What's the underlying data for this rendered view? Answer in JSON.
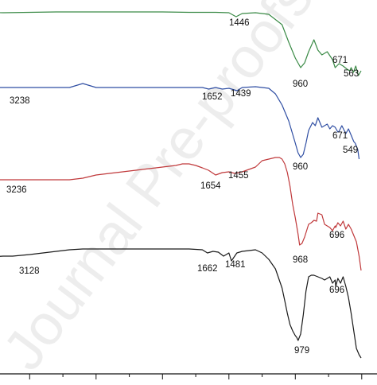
{
  "chart_data": {
    "type": "line",
    "xlabel": "",
    "ylabel": "",
    "xlim": [
      4000,
      400
    ],
    "x_ticks": [
      4000,
      3500,
      3000,
      2500,
      2000,
      1500,
      1000,
      500
    ],
    "x_tick_labels": [
      "",
      "",
      "",
      "",
      "",
      "",
      "",
      ""
    ],
    "grid": false,
    "legend": "none",
    "series": [
      {
        "color": "#3a8a46",
        "offset": 15,
        "x": [
          4000,
          3800,
          3600,
          3400,
          3200,
          3000,
          2800,
          2600,
          2400,
          2200,
          2000,
          1800,
          1700,
          1600,
          1500,
          1446,
          1400,
          1300,
          1200,
          1100,
          1050,
          1000,
          960,
          930,
          900,
          860,
          830,
          800,
          760,
          720,
          700,
          671,
          640,
          610,
          590,
          580,
          563,
          545,
          525,
          505
        ],
        "y": [
          0,
          0,
          0,
          0.5,
          1,
          0.5,
          0,
          0,
          0,
          0,
          0,
          0.5,
          0.5,
          0.5,
          1,
          6,
          2,
          1,
          3,
          16,
          38,
          58,
          70,
          64,
          50,
          35,
          48,
          54,
          50,
          60,
          70,
          65,
          68,
          72,
          74,
          70,
          76,
          68,
          80,
          74
        ]
      },
      {
        "color": "#2f4ea3",
        "offset": 110,
        "x": [
          4000,
          3800,
          3600,
          3400,
          3238,
          3200,
          3100,
          3000,
          2900,
          2800,
          2700,
          2600,
          2500,
          2400,
          2300,
          2200,
          2100,
          2000,
          1900,
          1800,
          1700,
          1652,
          1600,
          1550,
          1500,
          1439,
          1400,
          1300,
          1200,
          1150,
          1100,
          1050,
          1000,
          980,
          960,
          940,
          920,
          900,
          870,
          850,
          830,
          800,
          760,
          740,
          720,
          700,
          680,
          671,
          650,
          620,
          600,
          580,
          560,
          549,
          530,
          520
        ],
        "y": [
          0,
          0,
          0,
          0,
          0,
          0,
          0,
          0,
          0,
          0,
          0,
          -5,
          0,
          0,
          0,
          0,
          0,
          0,
          0,
          0,
          0,
          2,
          0,
          2,
          1,
          4,
          0,
          -1,
          1,
          8,
          22,
          42,
          70,
          82,
          88,
          84,
          70,
          54,
          44,
          48,
          38,
          50,
          46,
          52,
          48,
          50,
          56,
          55,
          48,
          58,
          52,
          60,
          68,
          70,
          78,
          90
        ]
      },
      {
        "color": "#c0393b",
        "offset": 212,
        "x": [
          4000,
          3800,
          3600,
          3400,
          3236,
          3200,
          3100,
          3000,
          2900,
          2800,
          2700,
          2600,
          2500,
          2400,
          2300,
          2200,
          2100,
          2000,
          1900,
          1850,
          1800,
          1750,
          1700,
          1654,
          1600,
          1550,
          1500,
          1455,
          1400,
          1350,
          1300,
          1250,
          1200,
          1150,
          1120,
          1100,
          1080,
          1060,
          1040,
          1020,
          1000,
          980,
          968,
          950,
          930,
          900,
          880,
          860,
          840,
          830,
          800,
          780,
          760,
          740,
          720,
          700,
          696,
          680,
          660,
          640,
          620,
          600,
          580,
          560,
          540,
          520,
          505
        ],
        "y": [
          5,
          8,
          10,
          12,
          14,
          14,
          14,
          14,
          14,
          14,
          14,
          12,
          8,
          6,
          4,
          2,
          0,
          -2,
          -4,
          -6,
          -6,
          -4,
          -1,
          2,
          8,
          5,
          4,
          6,
          4,
          1,
          -2,
          -10,
          -12,
          -14,
          -14,
          -12,
          -6,
          5,
          22,
          45,
          62,
          82,
          96,
          94,
          86,
          70,
          68,
          65,
          66,
          56,
          58,
          70,
          72,
          74,
          78,
          72,
          74,
          68,
          72,
          66,
          76,
          70,
          76,
          84,
          92,
          110,
          128
        ]
      },
      {
        "color": "#1a1a1a",
        "offset": 312,
        "x": [
          4000,
          3900,
          3800,
          3700,
          3600,
          3500,
          3400,
          3300,
          3200,
          3128,
          3000,
          2900,
          2800,
          2700,
          2600,
          2500,
          2400,
          2300,
          2200,
          2100,
          2000,
          1900,
          1800,
          1700,
          1662,
          1620,
          1580,
          1540,
          1500,
          1481,
          1440,
          1400,
          1350,
          1300,
          1250,
          1200,
          1150,
          1100,
          1080,
          1060,
          1040,
          1020,
          1000,
          990,
          979,
          960,
          940,
          920,
          900,
          880,
          860,
          830,
          800,
          780,
          760,
          740,
          720,
          700,
          696,
          680,
          660,
          640,
          620,
          600,
          580,
          560,
          540,
          520,
          505
        ],
        "y": [
          12,
          12,
          12,
          12,
          12,
          12,
          11,
          11,
          10,
          10,
          8,
          6,
          4,
          2,
          1,
          1,
          1,
          1,
          1,
          1,
          1,
          1,
          1,
          2,
          6,
          4,
          5,
          10,
          6,
          16,
          6,
          4,
          3,
          2,
          6,
          14,
          26,
          50,
          66,
          82,
          96,
          104,
          110,
          112,
          116,
          108,
          84,
          54,
          36,
          34,
          34,
          36,
          38,
          40,
          38,
          36,
          44,
          40,
          48,
          38,
          44,
          36,
          48,
          62,
          82,
          104,
          126,
          134,
          138
        ]
      }
    ],
    "annotations": [
      {
        "series": 0,
        "text": "1446",
        "x": 1446
      },
      {
        "series": 0,
        "text": "960",
        "x": 960
      },
      {
        "series": 0,
        "text": "671",
        "x": 671
      },
      {
        "series": 0,
        "text": "563",
        "x": 563
      },
      {
        "series": 1,
        "text": "3238",
        "x": 3238
      },
      {
        "series": 1,
        "text": "1652",
        "x": 1652
      },
      {
        "series": 1,
        "text": "1439",
        "x": 1439
      },
      {
        "series": 1,
        "text": "960",
        "x": 960
      },
      {
        "series": 1,
        "text": "671",
        "x": 671
      },
      {
        "series": 1,
        "text": "549",
        "x": 549
      },
      {
        "series": 2,
        "text": "3236",
        "x": 3236
      },
      {
        "series": 2,
        "text": "1654",
        "x": 1654
      },
      {
        "series": 2,
        "text": "1455",
        "x": 1455
      },
      {
        "series": 2,
        "text": "968",
        "x": 968
      },
      {
        "series": 2,
        "text": "696",
        "x": 696
      },
      {
        "series": 3,
        "text": "3128",
        "x": 3128
      },
      {
        "series": 3,
        "text": "1662",
        "x": 1662
      },
      {
        "series": 3,
        "text": "1481",
        "x": 1481
      },
      {
        "series": 3,
        "text": "979",
        "x": 979
      },
      {
        "series": 3,
        "text": "696",
        "x": 696
      }
    ]
  },
  "watermark": {
    "text": "Journal Pre-proofs",
    "color": "#cfcfcf"
  }
}
